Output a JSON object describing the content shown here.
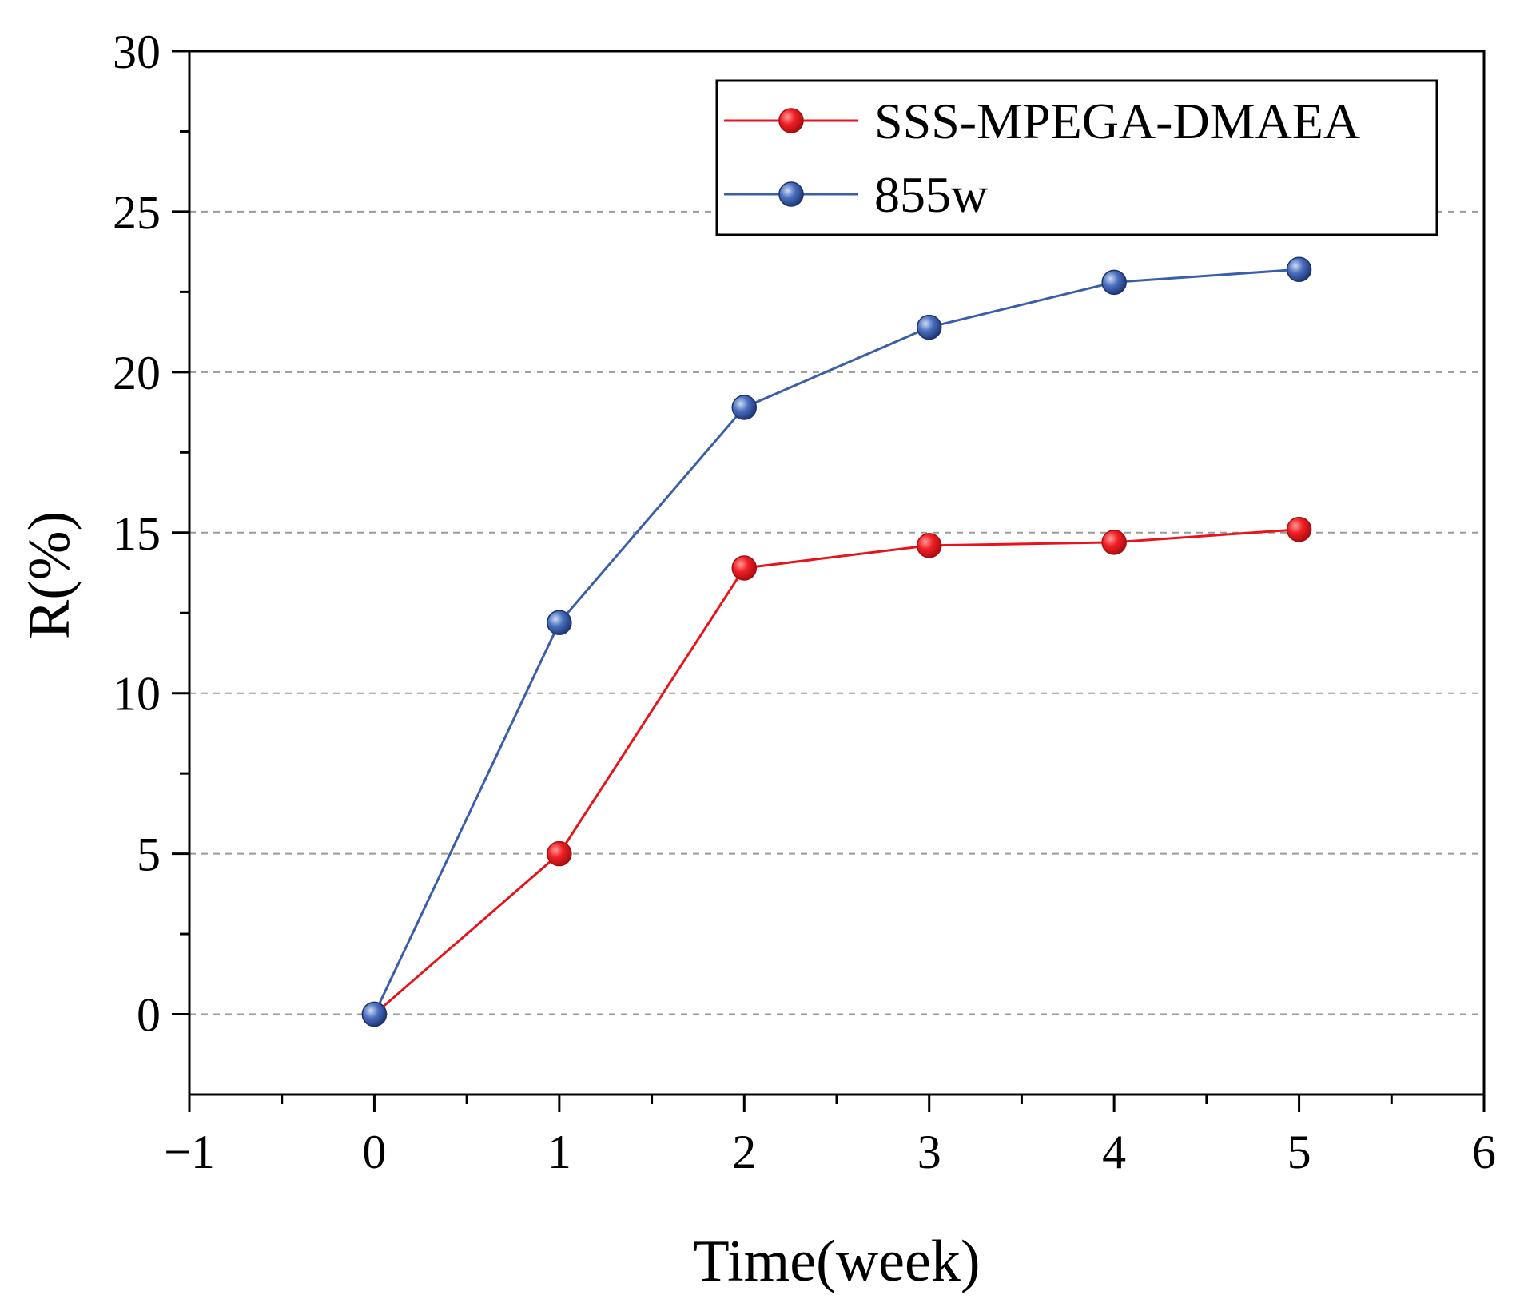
{
  "chart_data": {
    "type": "line",
    "title": "",
    "xlabel": "Time(week)",
    "ylabel": "R(%)",
    "xlim": [
      -1,
      6
    ],
    "ylim": [
      -2.5,
      30
    ],
    "x_ticks": [
      -1,
      0,
      1,
      2,
      3,
      4,
      5,
      6
    ],
    "x_tick_labels": [
      "−1",
      "0",
      "1",
      "2",
      "3",
      "4",
      "5",
      "6"
    ],
    "y_ticks": [
      0,
      5,
      10,
      15,
      20,
      25,
      30
    ],
    "y_tick_labels": [
      "0",
      "5",
      "10",
      "15",
      "20",
      "25",
      "30"
    ],
    "gridlines_y": [
      0,
      5,
      10,
      15,
      20,
      25
    ],
    "grid": "horizontal dashed",
    "legend_position": "top-right",
    "series": [
      {
        "name": "SSS-MPEGA-DMAEA",
        "color": "#e8141b",
        "x": [
          0,
          1,
          2,
          3,
          4,
          5
        ],
        "values": [
          0,
          5.0,
          13.9,
          14.6,
          14.7,
          15.1
        ]
      },
      {
        "name": "855w",
        "color": "#3b5ea8",
        "x": [
          0,
          1,
          2,
          3,
          4,
          5
        ],
        "values": [
          0,
          12.2,
          18.9,
          21.4,
          22.8,
          23.2
        ]
      }
    ]
  }
}
